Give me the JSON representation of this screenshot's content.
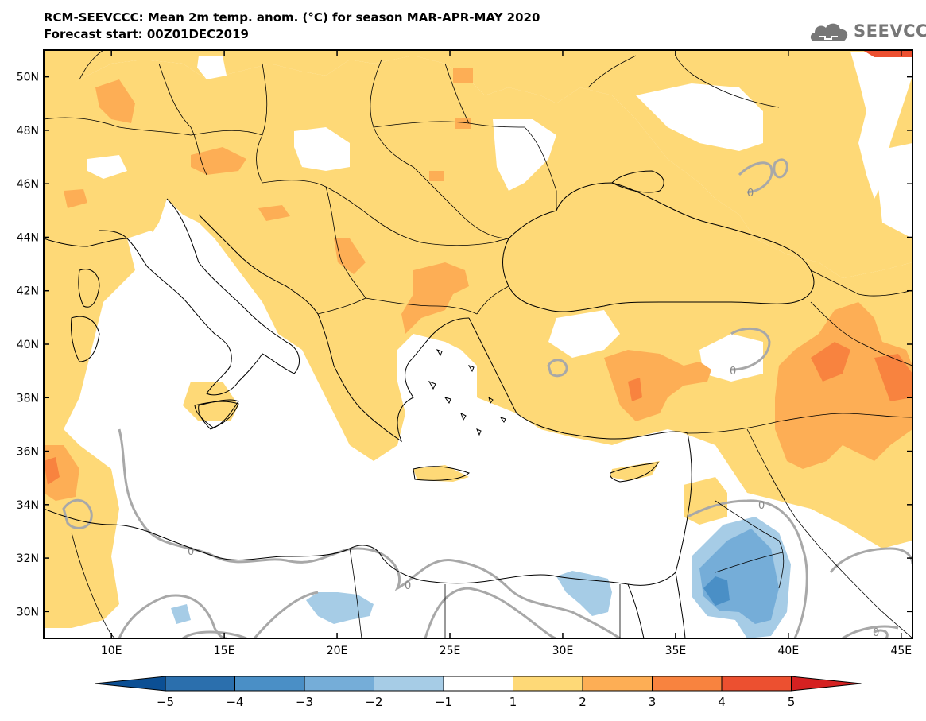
{
  "header": {
    "line1": "RCM-SEEVCCC: Mean 2m temp. anom. (°C) for season MAR-APR-MAY 2020",
    "line2": "Forecast start: 00Z01DEC2019"
  },
  "logo": {
    "text": "SEEVCCC",
    "icon": "cloud-icon"
  },
  "map": {
    "lon_range": [
      7,
      45.5
    ],
    "lat_range": [
      29,
      51
    ],
    "lon_ticks": [
      "10E",
      "15E",
      "20E",
      "25E",
      "30E",
      "35E",
      "40E",
      "45E"
    ],
    "lon_values": [
      10,
      15,
      20,
      25,
      30,
      35,
      40,
      45
    ],
    "lat_ticks": [
      "50N",
      "48N",
      "46N",
      "44N",
      "42N",
      "40N",
      "38N",
      "36N",
      "34N",
      "32N",
      "30N"
    ],
    "lat_values": [
      50,
      48,
      46,
      44,
      42,
      40,
      38,
      36,
      34,
      32,
      30
    ],
    "contour_label": "0"
  },
  "colorbar": {
    "labels": [
      "−5",
      "−4",
      "−3",
      "−2",
      "−1",
      "1",
      "2",
      "3",
      "4",
      "5"
    ],
    "colors": [
      "#0b4f94",
      "#2b6fad",
      "#4a8fc6",
      "#75add8",
      "#a6cce6",
      "#ffffff",
      "#fed977",
      "#fdae55",
      "#f8833f",
      "#ec5030",
      "#d52121"
    ]
  }
}
